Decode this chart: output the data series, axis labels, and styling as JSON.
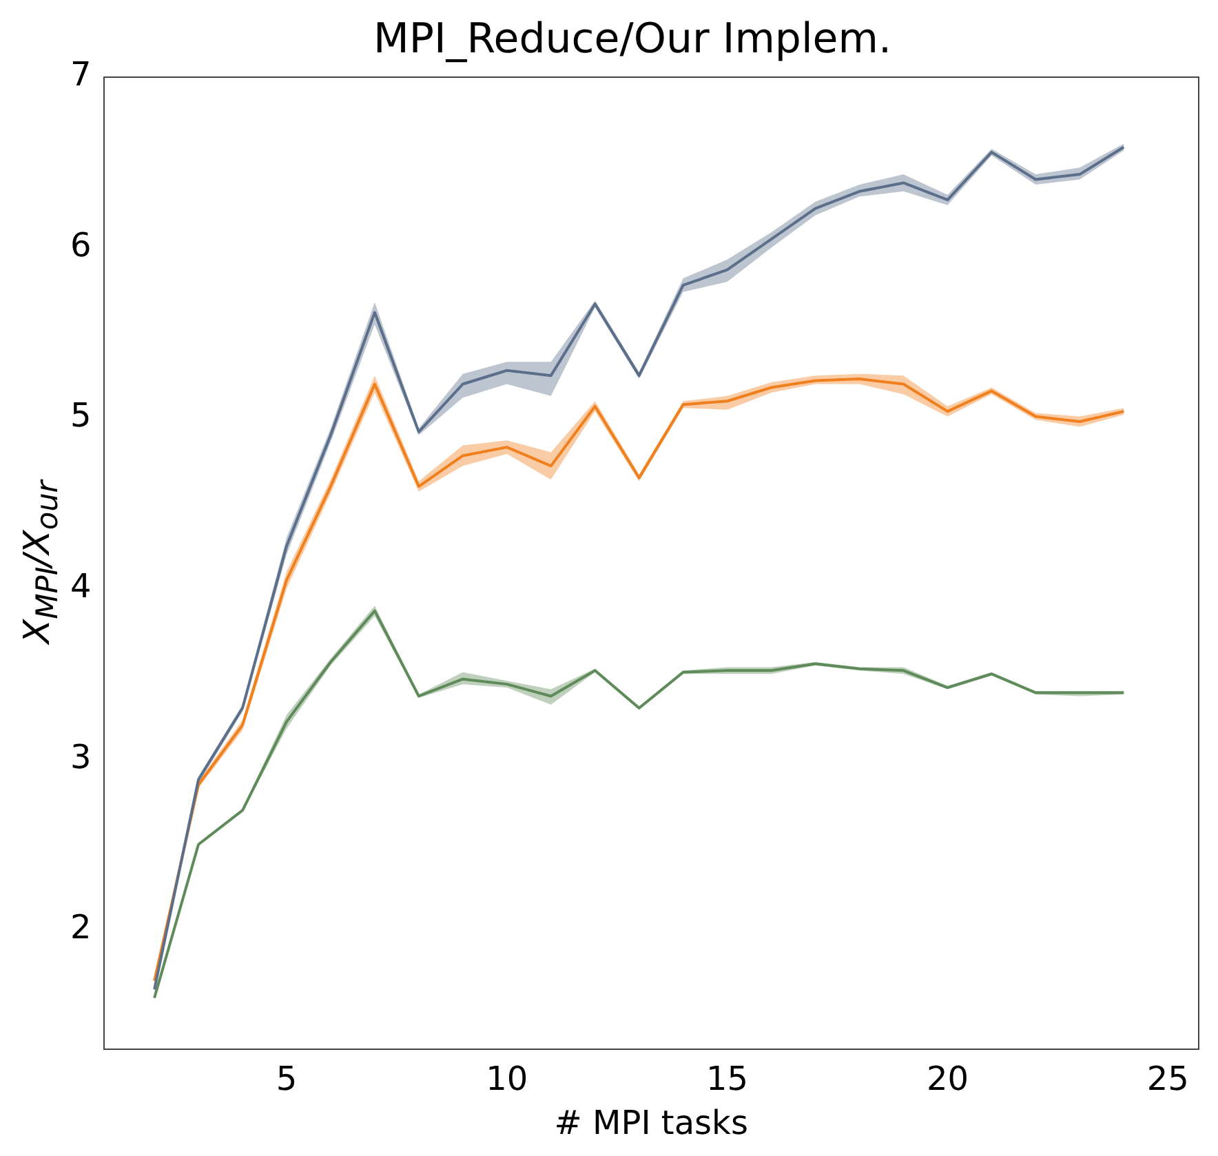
{
  "chart_data": {
    "type": "line",
    "title": "MPI_Reduce/Our Implem.",
    "xlabel": "# MPI tasks",
    "ylabel": "X$_{MPI}$/X$_{our}$",
    "x": [
      2,
      3,
      4,
      5,
      6,
      7,
      8,
      9,
      10,
      11,
      12,
      13,
      14,
      15,
      16,
      17,
      18,
      19,
      20,
      21,
      22,
      23,
      24
    ],
    "xlim": [
      0.85,
      25.7
    ],
    "xticks": [
      5,
      10,
      15,
      20,
      25
    ],
    "ylim": [
      1.3,
      7.0
    ],
    "yticks": [
      2,
      3,
      4,
      5,
      6,
      7
    ],
    "grid": false,
    "legend": false,
    "marker": "none",
    "line_style": "solid",
    "series": [
      {
        "color": "#5b6e8a",
        "values": [
          1.65,
          2.88,
          3.3,
          4.25,
          4.9,
          5.62,
          4.92,
          5.2,
          5.28,
          5.25,
          5.67,
          5.25,
          5.78,
          5.87,
          6.05,
          6.23,
          6.33,
          6.38,
          6.28,
          6.56,
          6.4,
          6.43,
          6.59
        ],
        "lower": [
          1.63,
          2.86,
          3.28,
          4.2,
          4.86,
          5.55,
          4.9,
          5.12,
          5.2,
          5.13,
          5.65,
          5.23,
          5.74,
          5.8,
          6.0,
          6.19,
          6.3,
          6.33,
          6.25,
          6.54,
          6.37,
          6.4,
          6.57
        ],
        "upper": [
          1.67,
          2.9,
          3.32,
          4.3,
          4.94,
          5.68,
          4.94,
          5.26,
          5.33,
          5.33,
          5.69,
          5.27,
          5.82,
          5.93,
          6.09,
          6.27,
          6.37,
          6.43,
          6.31,
          6.58,
          6.43,
          6.47,
          6.61
        ]
      },
      {
        "color": "#f07f1e",
        "values": [
          1.7,
          2.85,
          3.2,
          4.05,
          4.6,
          5.2,
          4.6,
          4.78,
          4.83,
          4.72,
          5.07,
          4.65,
          5.08,
          5.1,
          5.18,
          5.22,
          5.23,
          5.2,
          5.04,
          5.16,
          5.01,
          4.98,
          5.04
        ],
        "lower": [
          1.68,
          2.83,
          3.17,
          4.0,
          4.56,
          5.15,
          4.57,
          4.72,
          4.79,
          4.64,
          5.04,
          4.63,
          5.06,
          5.05,
          5.15,
          5.2,
          5.2,
          5.14,
          5.01,
          5.14,
          4.99,
          4.95,
          5.02
        ],
        "upper": [
          1.72,
          2.87,
          3.23,
          4.1,
          4.64,
          5.25,
          4.63,
          4.84,
          4.87,
          4.8,
          5.1,
          4.67,
          5.1,
          5.13,
          5.21,
          5.25,
          5.26,
          5.25,
          5.07,
          5.18,
          5.03,
          5.01,
          5.06
        ]
      },
      {
        "color": "#5f8a5a",
        "values": [
          1.6,
          2.5,
          2.7,
          3.22,
          3.57,
          3.87,
          3.37,
          3.47,
          3.44,
          3.37,
          3.52,
          3.3,
          3.51,
          3.52,
          3.52,
          3.56,
          3.53,
          3.52,
          3.42,
          3.5,
          3.39,
          3.39,
          3.39
        ],
        "lower": [
          1.59,
          2.49,
          2.69,
          3.18,
          3.55,
          3.84,
          3.36,
          3.44,
          3.42,
          3.32,
          3.51,
          3.29,
          3.5,
          3.5,
          3.5,
          3.55,
          3.52,
          3.5,
          3.41,
          3.49,
          3.38,
          3.37,
          3.38
        ],
        "upper": [
          1.61,
          2.51,
          2.71,
          3.26,
          3.59,
          3.9,
          3.38,
          3.51,
          3.46,
          3.41,
          3.53,
          3.31,
          3.52,
          3.54,
          3.54,
          3.57,
          3.54,
          3.54,
          3.43,
          3.51,
          3.4,
          3.4,
          3.4
        ]
      }
    ]
  }
}
